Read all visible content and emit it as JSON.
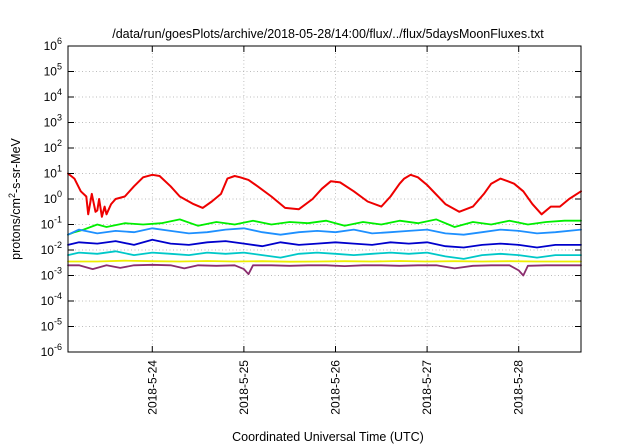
{
  "chart_data": {
    "type": "line",
    "title": "/data/run/goesPlots/archive/2018-05-28/14:00/flux/../flux/5daysMoonFluxes.txt",
    "xlabel": "Coordinated Universal Time (UTC)",
    "ylabel": {
      "prefix": "protons/cm",
      "sup": "2",
      "suffix": "-s-sr-MeV"
    },
    "yscale": "log",
    "ylim_exponent": [
      -6,
      6
    ],
    "y_ticks": [
      {
        "base": "10",
        "exp": "-6"
      },
      {
        "base": "10",
        "exp": "-5"
      },
      {
        "base": "10",
        "exp": "-4"
      },
      {
        "base": "10",
        "exp": "-3"
      },
      {
        "base": "10",
        "exp": "-2"
      },
      {
        "base": "10",
        "exp": "-1"
      },
      {
        "base": "10",
        "exp": "0"
      },
      {
        "base": "10",
        "exp": "1"
      },
      {
        "base": "10",
        "exp": "2"
      },
      {
        "base": "10",
        "exp": "3"
      },
      {
        "base": "10",
        "exp": "4"
      },
      {
        "base": "10",
        "exp": "5"
      },
      {
        "base": "10",
        "exp": "6"
      }
    ],
    "xlim_days": [
      -0.92,
      4.68
    ],
    "x_ticks": [
      "2018-5-24",
      "2018-5-25",
      "2018-5-26",
      "2018-5-27",
      "2018-5-28"
    ],
    "grid": true,
    "series": [
      {
        "color": "#ee0000",
        "x_days": [
          -0.92,
          -0.85,
          -0.78,
          -0.72,
          -0.7,
          -0.66,
          -0.62,
          -0.6,
          -0.58,
          -0.55,
          -0.52,
          -0.5,
          -0.45,
          -0.4,
          -0.3,
          -0.2,
          -0.1,
          0.0,
          0.08,
          0.2,
          0.3,
          0.45,
          0.55,
          0.65,
          0.75,
          0.82,
          0.9,
          0.96,
          1.05,
          1.15,
          1.3,
          1.45,
          1.6,
          1.75,
          1.85,
          1.95,
          2.05,
          2.2,
          2.35,
          2.5,
          2.6,
          2.7,
          2.75,
          2.82,
          2.9,
          3.0,
          3.2,
          3.35,
          3.5,
          3.62,
          3.7,
          3.8,
          3.88,
          3.95,
          4.05,
          4.15,
          4.25,
          4.35,
          4.45,
          4.55,
          4.68
        ],
        "log10_values": [
          1.0,
          0.8,
          0.3,
          0.1,
          -0.6,
          0.2,
          -0.5,
          -0.45,
          0.0,
          -0.7,
          -0.3,
          -0.6,
          -0.2,
          0.0,
          0.1,
          0.5,
          0.85,
          0.95,
          0.9,
          0.5,
          0.1,
          -0.2,
          -0.35,
          -0.1,
          0.2,
          0.8,
          0.9,
          0.85,
          0.75,
          0.5,
          0.1,
          -0.35,
          -0.4,
          0.0,
          0.4,
          0.7,
          0.65,
          0.3,
          -0.1,
          -0.3,
          0.1,
          0.6,
          0.8,
          0.95,
          0.85,
          0.55,
          -0.2,
          -0.5,
          -0.3,
          0.2,
          0.6,
          0.8,
          0.7,
          0.6,
          0.3,
          -0.2,
          -0.6,
          -0.3,
          -0.3,
          0.0,
          0.3
        ]
      },
      {
        "color": "#00ee00",
        "x_days": [
          -0.92,
          -0.85,
          -0.75,
          -0.6,
          -0.5,
          -0.3,
          -0.1,
          0.1,
          0.3,
          0.5,
          0.7,
          0.9,
          1.1,
          1.3,
          1.5,
          1.7,
          1.9,
          2.1,
          2.3,
          2.5,
          2.7,
          2.9,
          3.1,
          3.3,
          3.5,
          3.7,
          3.9,
          4.1,
          4.3,
          4.5,
          4.68
        ],
        "log10_values": [
          -1.4,
          -1.3,
          -1.2,
          -1.0,
          -1.1,
          -0.95,
          -1.0,
          -0.95,
          -0.8,
          -1.05,
          -0.9,
          -1.0,
          -0.85,
          -1.0,
          -0.9,
          -0.95,
          -0.85,
          -1.05,
          -0.9,
          -1.0,
          -0.85,
          -0.95,
          -0.8,
          -1.1,
          -0.9,
          -1.0,
          -0.85,
          -1.0,
          -0.9,
          -0.85,
          -0.85
        ]
      },
      {
        "color": "#1e90ff",
        "x_days": [
          -0.92,
          -0.8,
          -0.6,
          -0.4,
          -0.2,
          0.0,
          0.2,
          0.4,
          0.6,
          0.8,
          1.0,
          1.2,
          1.4,
          1.6,
          1.8,
          2.0,
          2.2,
          2.4,
          2.6,
          2.8,
          3.0,
          3.2,
          3.4,
          3.6,
          3.8,
          4.0,
          4.2,
          4.4,
          4.68
        ],
        "log10_values": [
          -1.4,
          -1.2,
          -1.35,
          -1.25,
          -1.3,
          -1.15,
          -1.25,
          -1.35,
          -1.3,
          -1.2,
          -1.15,
          -1.3,
          -1.4,
          -1.3,
          -1.25,
          -1.3,
          -1.2,
          -1.35,
          -1.3,
          -1.25,
          -1.2,
          -1.35,
          -1.4,
          -1.3,
          -1.2,
          -1.25,
          -1.35,
          -1.3,
          -1.2
        ]
      },
      {
        "color": "#0000cc",
        "x_days": [
          -0.92,
          -0.8,
          -0.6,
          -0.4,
          -0.2,
          0.0,
          0.2,
          0.4,
          0.6,
          0.8,
          1.0,
          1.2,
          1.4,
          1.6,
          1.8,
          2.0,
          2.2,
          2.4,
          2.6,
          2.8,
          3.0,
          3.2,
          3.4,
          3.6,
          3.8,
          4.0,
          4.2,
          4.4,
          4.68
        ],
        "log10_values": [
          -1.8,
          -1.7,
          -1.75,
          -1.65,
          -1.8,
          -1.6,
          -1.75,
          -1.8,
          -1.7,
          -1.65,
          -1.75,
          -1.85,
          -1.7,
          -1.8,
          -1.75,
          -1.7,
          -1.75,
          -1.8,
          -1.7,
          -1.75,
          -1.7,
          -1.85,
          -1.9,
          -1.8,
          -1.75,
          -1.8,
          -1.9,
          -1.8,
          -1.8
        ]
      },
      {
        "color": "#00c8c8",
        "x_days": [
          -0.92,
          -0.8,
          -0.6,
          -0.4,
          -0.2,
          0.0,
          0.2,
          0.4,
          0.6,
          0.8,
          1.0,
          1.2,
          1.4,
          1.6,
          1.8,
          2.0,
          2.2,
          2.4,
          2.6,
          2.8,
          3.0,
          3.2,
          3.4,
          3.6,
          3.8,
          4.0,
          4.2,
          4.4,
          4.68
        ],
        "log10_values": [
          -2.2,
          -2.1,
          -2.15,
          -2.05,
          -2.2,
          -2.1,
          -2.15,
          -2.2,
          -2.1,
          -2.15,
          -2.1,
          -2.2,
          -2.3,
          -2.15,
          -2.1,
          -2.15,
          -2.2,
          -2.15,
          -2.1,
          -2.15,
          -2.1,
          -2.25,
          -2.35,
          -2.2,
          -2.15,
          -2.2,
          -2.3,
          -2.2,
          -2.2
        ]
      },
      {
        "color": "#eeee00",
        "x_days": [
          -0.92,
          -0.6,
          -0.3,
          0.0,
          0.3,
          0.6,
          0.9,
          1.2,
          1.5,
          1.8,
          2.1,
          2.4,
          2.7,
          3.0,
          3.3,
          3.6,
          3.9,
          4.2,
          4.5,
          4.68
        ],
        "log10_values": [
          -2.45,
          -2.45,
          -2.42,
          -2.44,
          -2.45,
          -2.43,
          -2.45,
          -2.44,
          -2.46,
          -2.45,
          -2.44,
          -2.45,
          -2.43,
          -2.45,
          -2.44,
          -2.45,
          -2.44,
          -2.45,
          -2.45,
          -2.45
        ]
      },
      {
        "color": "#8b2d6e",
        "x_days": [
          -0.92,
          -0.8,
          -0.65,
          -0.5,
          -0.35,
          -0.2,
          0.0,
          0.2,
          0.35,
          0.5,
          0.7,
          0.9,
          1.0,
          1.05,
          1.1,
          1.3,
          1.5,
          1.7,
          1.9,
          2.1,
          2.3,
          2.5,
          2.7,
          2.9,
          3.1,
          3.3,
          3.5,
          3.7,
          3.9,
          4.0,
          4.05,
          4.1,
          4.3,
          4.5,
          4.68
        ],
        "log10_values": [
          -2.6,
          -2.6,
          -2.75,
          -2.6,
          -2.7,
          -2.6,
          -2.58,
          -2.6,
          -2.72,
          -2.6,
          -2.62,
          -2.6,
          -2.75,
          -2.95,
          -2.6,
          -2.6,
          -2.62,
          -2.6,
          -2.6,
          -2.63,
          -2.6,
          -2.6,
          -2.62,
          -2.6,
          -2.6,
          -2.72,
          -2.62,
          -2.6,
          -2.6,
          -2.8,
          -3.0,
          -2.62,
          -2.6,
          -2.6,
          -2.6
        ]
      }
    ]
  }
}
